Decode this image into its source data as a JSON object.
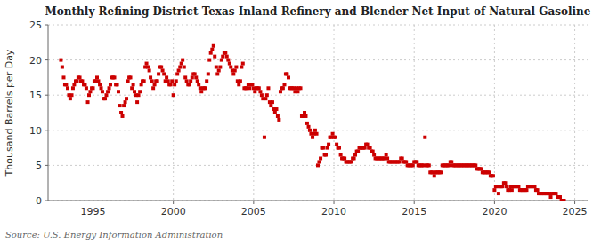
{
  "chart_data": {
    "type": "scatter",
    "title": "Monthly Refining District Texas Inland Refinery and Blender Net Input of Natural Gasoline",
    "ylabel": "Thousand Barrels per Day",
    "source": "Source: U.S. Energy Information Administration",
    "color": "#cc0000",
    "marker": "square",
    "grid": true,
    "xlim": [
      1992.2,
      2025.8
    ],
    "ylim": [
      0,
      25
    ],
    "xticks": [
      1995,
      2000,
      2005,
      2010,
      2015,
      2020,
      2025
    ],
    "yticks": [
      0,
      5,
      10,
      15,
      20,
      25
    ],
    "x": [
      1993,
      1993.08,
      1993.17,
      1993.25,
      1993.33,
      1993.42,
      1993.5,
      1993.58,
      1993.67,
      1993.75,
      1993.83,
      1993.92,
      1994,
      1994.08,
      1994.17,
      1994.25,
      1994.33,
      1994.42,
      1994.5,
      1994.58,
      1994.67,
      1994.75,
      1994.83,
      1994.92,
      1995,
      1995.08,
      1995.17,
      1995.25,
      1995.33,
      1995.42,
      1995.5,
      1995.58,
      1995.67,
      1995.75,
      1995.83,
      1995.92,
      1996,
      1996.08,
      1996.17,
      1996.25,
      1996.33,
      1996.42,
      1996.5,
      1996.58,
      1996.67,
      1996.75,
      1996.83,
      1996.92,
      1997,
      1997.08,
      1997.17,
      1997.25,
      1997.33,
      1997.42,
      1997.5,
      1997.58,
      1997.67,
      1997.75,
      1997.83,
      1997.92,
      1998,
      1998.08,
      1998.17,
      1998.25,
      1998.33,
      1998.42,
      1998.5,
      1998.58,
      1998.67,
      1998.75,
      1998.83,
      1998.92,
      1999,
      1999.08,
      1999.17,
      1999.25,
      1999.33,
      1999.42,
      1999.5,
      1999.58,
      1999.67,
      1999.75,
      1999.83,
      1999.92,
      2000,
      2000.08,
      2000.17,
      2000.25,
      2000.33,
      2000.42,
      2000.5,
      2000.58,
      2000.67,
      2000.75,
      2000.83,
      2000.92,
      2001,
      2001.08,
      2001.17,
      2001.25,
      2001.33,
      2001.42,
      2001.5,
      2001.58,
      2001.67,
      2001.75,
      2001.83,
      2001.92,
      2002,
      2002.08,
      2002.17,
      2002.25,
      2002.33,
      2002.42,
      2002.5,
      2002.58,
      2002.67,
      2002.75,
      2002.83,
      2002.92,
      2003,
      2003.08,
      2003.17,
      2003.25,
      2003.33,
      2003.42,
      2003.5,
      2003.58,
      2003.67,
      2003.75,
      2003.83,
      2003.92,
      2004,
      2004.08,
      2004.17,
      2004.25,
      2004.33,
      2004.42,
      2004.5,
      2004.58,
      2004.67,
      2004.75,
      2004.83,
      2004.92,
      2005,
      2005.08,
      2005.17,
      2005.25,
      2005.33,
      2005.42,
      2005.5,
      2005.58,
      2005.67,
      2005.75,
      2005.83,
      2005.92,
      2006,
      2006.08,
      2006.17,
      2006.25,
      2006.33,
      2006.42,
      2006.5,
      2006.58,
      2006.67,
      2006.75,
      2006.83,
      2006.92,
      2007,
      2007.08,
      2007.17,
      2007.25,
      2007.33,
      2007.42,
      2007.5,
      2007.58,
      2007.67,
      2007.75,
      2007.83,
      2007.92,
      2008,
      2008.08,
      2008.17,
      2008.25,
      2008.33,
      2008.42,
      2008.5,
      2008.58,
      2008.67,
      2008.75,
      2008.83,
      2008.92,
      2009,
      2009.08,
      2009.17,
      2009.25,
      2009.33,
      2009.42,
      2009.5,
      2009.58,
      2009.67,
      2009.75,
      2009.83,
      2009.92,
      2010,
      2010.08,
      2010.17,
      2010.25,
      2010.33,
      2010.42,
      2010.5,
      2010.58,
      2010.67,
      2010.75,
      2010.83,
      2010.92,
      2011,
      2011.08,
      2011.17,
      2011.25,
      2011.33,
      2011.42,
      2011.5,
      2011.58,
      2011.67,
      2011.75,
      2011.83,
      2011.92,
      2012,
      2012.08,
      2012.17,
      2012.25,
      2012.33,
      2012.42,
      2012.5,
      2012.58,
      2012.67,
      2012.75,
      2012.83,
      2012.92,
      2013,
      2013.08,
      2013.17,
      2013.25,
      2013.33,
      2013.42,
      2013.5,
      2013.58,
      2013.67,
      2013.75,
      2013.83,
      2013.92,
      2014,
      2014.08,
      2014.17,
      2014.25,
      2014.33,
      2014.42,
      2014.5,
      2014.58,
      2014.67,
      2014.75,
      2014.83,
      2014.92,
      2015,
      2015.08,
      2015.17,
      2015.25,
      2015.33,
      2015.42,
      2015.5,
      2015.58,
      2015.67,
      2015.75,
      2015.83,
      2015.92,
      2016,
      2016.08,
      2016.17,
      2016.25,
      2016.33,
      2016.42,
      2016.5,
      2016.58,
      2016.67,
      2016.75,
      2016.83,
      2016.92,
      2017,
      2017.08,
      2017.17,
      2017.25,
      2017.33,
      2017.42,
      2017.5,
      2017.58,
      2017.67,
      2017.75,
      2017.83,
      2017.92,
      2018,
      2018.08,
      2018.17,
      2018.25,
      2018.33,
      2018.42,
      2018.5,
      2018.58,
      2018.67,
      2018.75,
      2018.83,
      2018.92,
      2019,
      2019.08,
      2019.17,
      2019.25,
      2019.33,
      2019.42,
      2019.5,
      2019.58,
      2019.67,
      2019.75,
      2019.83,
      2019.92,
      2020,
      2020.08,
      2020.17,
      2020.25,
      2020.33,
      2020.42,
      2020.5,
      2020.58,
      2020.67,
      2020.75,
      2020.83,
      2020.92,
      2021,
      2021.08,
      2021.17,
      2021.25,
      2021.33,
      2021.42,
      2021.5,
      2021.58,
      2021.67,
      2021.75,
      2021.83,
      2021.92,
      2022,
      2022.08,
      2022.17,
      2022.25,
      2022.33,
      2022.42,
      2022.5,
      2022.58,
      2022.67,
      2022.75,
      2022.83,
      2022.92,
      2023,
      2023.08,
      2023.17,
      2023.25,
      2023.33,
      2023.42,
      2023.5,
      2023.58,
      2023.67,
      2023.75,
      2023.83,
      2023.92,
      2024,
      2024.08,
      2024.17,
      2024.25,
      2024.33
    ],
    "values": [
      20.0,
      19.0,
      17.5,
      16.5,
      16.5,
      16.0,
      15.0,
      14.5,
      15.0,
      16.0,
      16.5,
      17.0,
      17.0,
      17.5,
      17.5,
      17.0,
      17.0,
      16.5,
      16.5,
      16.0,
      14.0,
      15.0,
      15.5,
      16.0,
      16.0,
      17.0,
      17.0,
      17.5,
      17.0,
      16.5,
      16.0,
      15.5,
      14.5,
      14.5,
      15.0,
      15.5,
      16.0,
      16.5,
      17.5,
      17.5,
      17.5,
      16.5,
      16.5,
      15.5,
      13.5,
      12.5,
      12.0,
      13.5,
      14.0,
      14.5,
      17.0,
      17.5,
      17.5,
      16.0,
      16.5,
      15.5,
      15.0,
      14.0,
      15.0,
      15.5,
      16.5,
      17.0,
      17.0,
      19.0,
      19.5,
      19.0,
      18.5,
      17.5,
      17.0,
      16.0,
      16.5,
      17.0,
      17.0,
      18.0,
      19.0,
      19.0,
      18.5,
      18.0,
      17.0,
      17.5,
      17.0,
      16.5,
      16.5,
      17.0,
      15.0,
      16.5,
      17.0,
      18.0,
      18.5,
      19.0,
      19.5,
      20.0,
      19.0,
      17.5,
      17.0,
      16.5,
      16.5,
      17.0,
      17.5,
      18.0,
      18.0,
      17.5,
      17.0,
      16.5,
      16.0,
      15.5,
      16.0,
      16.0,
      16.0,
      17.0,
      18.0,
      20.0,
      21.0,
      21.5,
      22.0,
      20.5,
      19.0,
      18.0,
      18.5,
      19.0,
      20.0,
      20.5,
      21.0,
      21.0,
      20.5,
      20.0,
      19.5,
      19.0,
      18.5,
      18.0,
      18.5,
      19.0,
      17.0,
      16.5,
      17.0,
      19.0,
      19.5,
      16.0,
      16.0,
      16.0,
      16.5,
      16.0,
      16.5,
      16.5,
      16.0,
      15.5,
      16.0,
      16.0,
      16.0,
      15.5,
      15.0,
      14.5,
      9.0,
      14.5,
      15.0,
      16.0,
      14.0,
      13.5,
      14.0,
      13.0,
      12.5,
      13.0,
      12.0,
      11.5,
      15.5,
      16.0,
      16.0,
      16.5,
      18.0,
      18.0,
      17.5,
      16.0,
      16.0,
      16.0,
      16.0,
      15.5,
      16.0,
      15.5,
      16.0,
      16.0,
      12.0,
      12.0,
      12.5,
      12.0,
      11.0,
      10.5,
      10.0,
      9.5,
      9.0,
      9.5,
      10.0,
      9.5,
      5.0,
      5.5,
      6.0,
      7.5,
      7.5,
      6.5,
      6.5,
      7.5,
      8.0,
      9.0,
      9.0,
      9.5,
      9.0,
      9.0,
      8.0,
      7.5,
      7.5,
      6.5,
      6.0,
      6.0,
      6.0,
      5.5,
      5.5,
      5.5,
      5.5,
      5.5,
      6.0,
      6.0,
      6.5,
      7.0,
      7.0,
      7.5,
      7.5,
      7.5,
      7.5,
      7.5,
      8.0,
      8.0,
      7.5,
      7.5,
      7.0,
      7.0,
      6.5,
      6.0,
      6.0,
      6.0,
      6.0,
      6.0,
      6.0,
      6.0,
      6.0,
      6.5,
      6.0,
      5.5,
      5.5,
      5.5,
      5.5,
      5.5,
      5.5,
      5.5,
      5.5,
      5.5,
      6.0,
      6.0,
      5.5,
      5.5,
      5.5,
      5.0,
      5.0,
      5.0,
      5.0,
      5.0,
      5.5,
      5.5,
      5.5,
      5.0,
      5.0,
      5.0,
      5.0,
      5.0,
      9.0,
      5.0,
      5.0,
      5.0,
      4.0,
      4.0,
      4.0,
      3.5,
      4.0,
      4.0,
      4.0,
      4.0,
      4.0,
      5.0,
      5.0,
      5.0,
      5.0,
      5.0,
      5.0,
      5.5,
      5.5,
      5.0,
      5.0,
      5.0,
      5.0,
      5.0,
      5.0,
      5.0,
      5.0,
      5.0,
      5.0,
      5.0,
      5.0,
      5.0,
      5.0,
      5.0,
      5.0,
      5.0,
      5.0,
      4.5,
      4.5,
      4.5,
      4.5,
      4.0,
      4.0,
      4.0,
      4.0,
      4.0,
      4.0,
      3.5,
      3.5,
      3.5,
      1.5,
      2.0,
      2.0,
      1.0,
      2.0,
      2.0,
      2.0,
      2.5,
      2.5,
      2.0,
      1.5,
      1.5,
      2.0,
      1.5,
      2.0,
      2.0,
      2.0,
      2.0,
      2.0,
      1.5,
      1.5,
      1.5,
      1.5,
      1.5,
      1.5,
      2.0,
      2.0,
      2.0,
      2.0,
      2.0,
      2.0,
      1.5,
      1.5,
      1.0,
      1.0,
      1.0,
      1.0,
      1.0,
      1.0,
      1.0,
      1.0,
      1.0,
      0.5,
      1.0,
      1.0,
      1.0,
      1.0,
      0.5,
      0.5,
      0.5,
      0.0,
      0.0,
      0.0
    ]
  }
}
